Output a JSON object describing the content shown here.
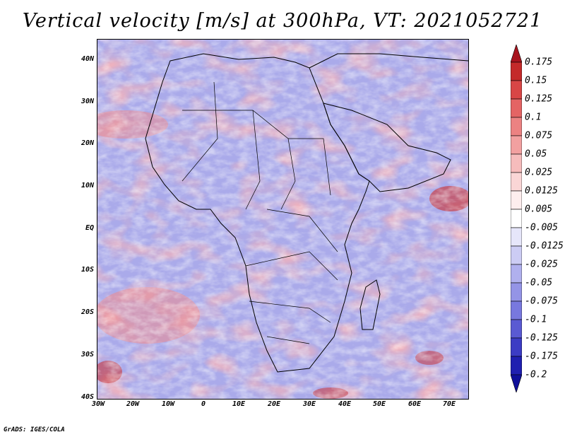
{
  "title": "Vertical velocity [m/s] at 300hPa, VT: 2021052721",
  "footer": "GrADS: IGES/COLA",
  "map": {
    "region": "Africa",
    "lat_labels": [
      "40N",
      "30N",
      "20N",
      "10N",
      "EQ",
      "10S",
      "20S",
      "30S",
      "40S"
    ],
    "lon_labels": [
      "30W",
      "20W",
      "10W",
      "0",
      "10E",
      "20E",
      "30E",
      "40E",
      "50E",
      "60E",
      "70E"
    ]
  },
  "colorbar": {
    "levels": [
      "0.175",
      "0.15",
      "0.125",
      "0.1",
      "0.075",
      "0.05",
      "0.025",
      "0.0125",
      "0.005",
      "-0.005",
      "-0.0125",
      "-0.025",
      "-0.05",
      "-0.075",
      "-0.1",
      "-0.125",
      "-0.175",
      "-0.2"
    ],
    "colors": [
      "#a8141e",
      "#c42a2a",
      "#d84646",
      "#e46464",
      "#ec8282",
      "#f2a0a0",
      "#f6bcbc",
      "#fad6d6",
      "#fdeeee",
      "#ffffff",
      "#e6e6fa",
      "#ccccf4",
      "#b0b0ee",
      "#9494e6",
      "#7878de",
      "#5a5ad2",
      "#3c3cc4",
      "#2020b0",
      "#10109a"
    ]
  }
}
